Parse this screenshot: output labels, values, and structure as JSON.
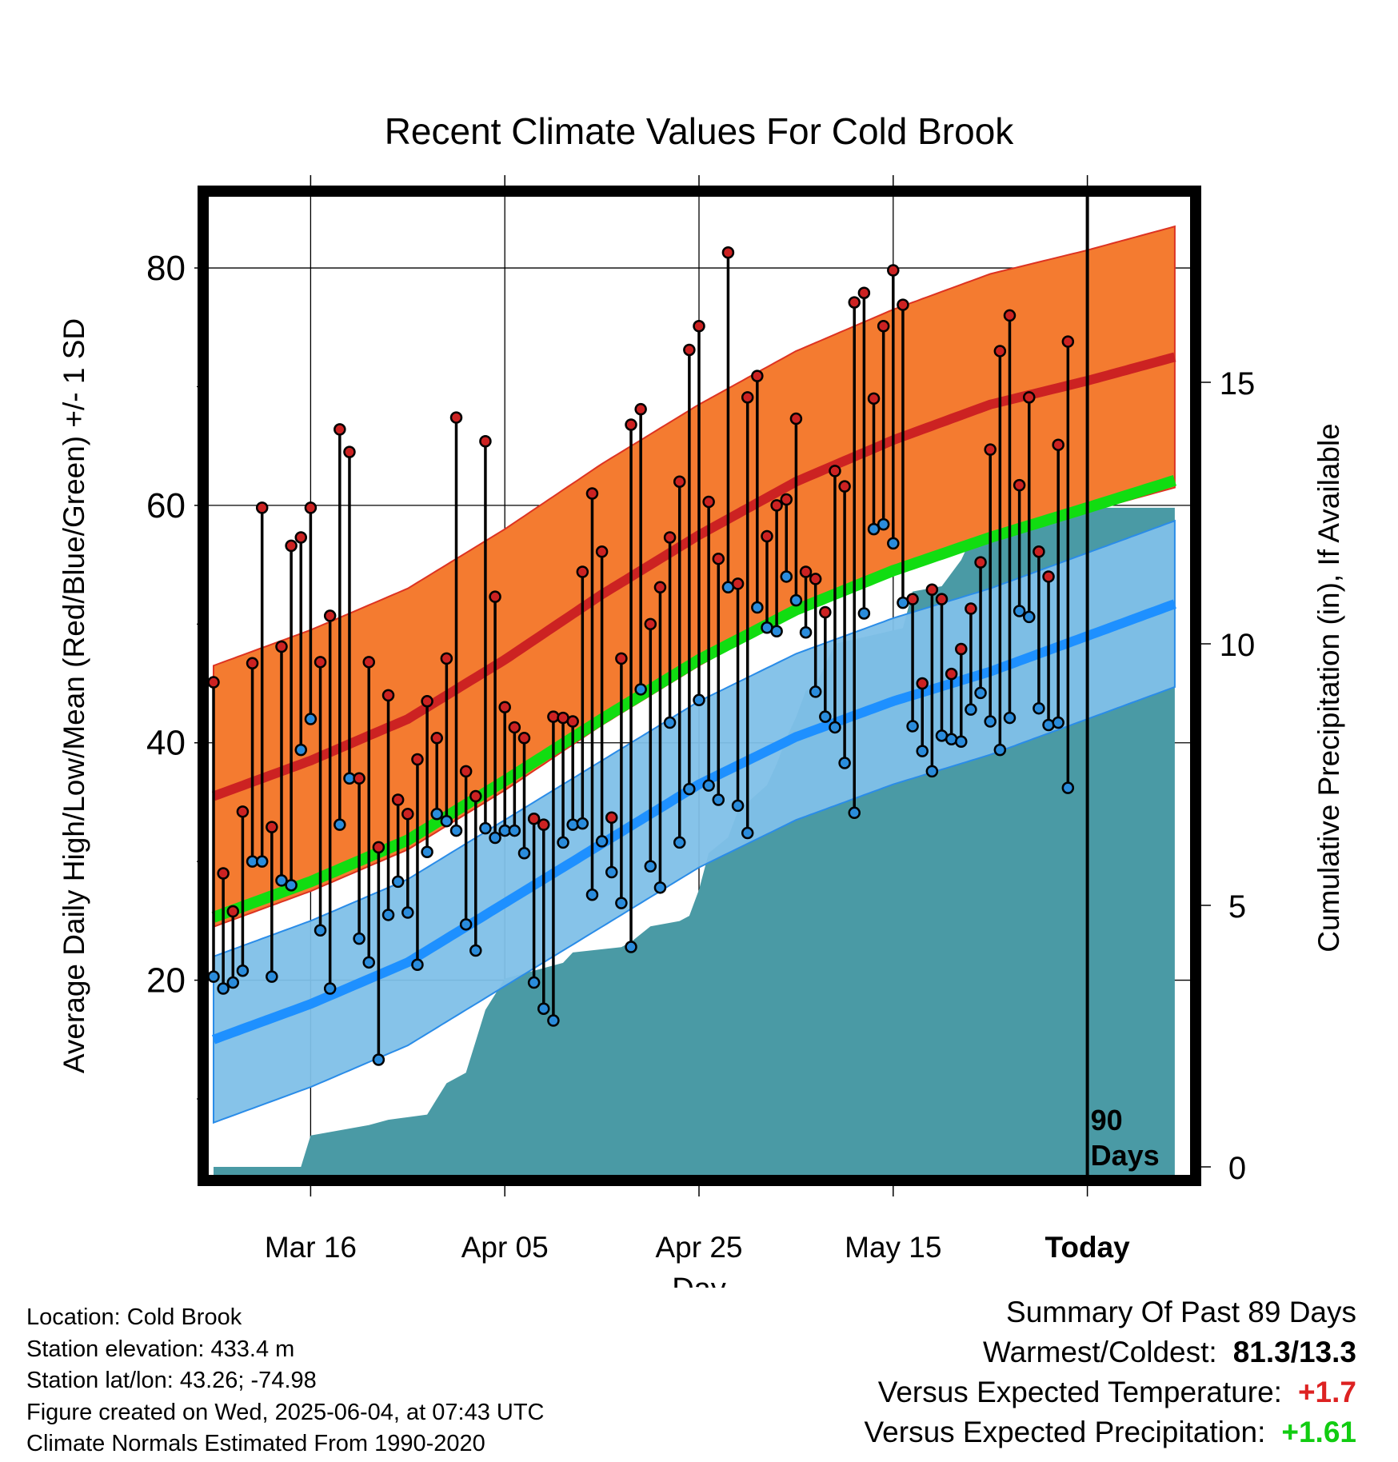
{
  "chart_data": {
    "type": "line",
    "title": "Recent Climate Values For Cold Brook",
    "xlabel": "Day",
    "ylabel": "Average Daily High/Low/Mean (Red/Blue/Green) +/- 1 SD",
    "y2label": "Cumulative Precipitation (in), If Available",
    "x_ticks": [
      {
        "day": 10,
        "label": "Mar 16"
      },
      {
        "day": 30,
        "label": "Apr 05"
      },
      {
        "day": 50,
        "label": "Apr 25"
      },
      {
        "day": 70,
        "label": "May 15"
      },
      {
        "day": 90,
        "label": "Today"
      }
    ],
    "xlim": [
      0,
      99
    ],
    "ylim": [
      3.6,
      86
    ],
    "y_ticks": [
      20,
      40,
      60,
      80
    ],
    "y2lim": [
      0,
      18.7
    ],
    "y2_ticks": [
      0,
      5,
      10,
      15
    ],
    "today_marker": "90\nDays",
    "normal_high": {
      "days": [
        0,
        10,
        20,
        30,
        40,
        50,
        60,
        70,
        80,
        90,
        99
      ],
      "mean": [
        35.5,
        38.5,
        42,
        47,
        52.5,
        57.5,
        62,
        65.5,
        68.5,
        70.5,
        72.5
      ],
      "sd": 11
    },
    "normal_low": {
      "days": [
        0,
        10,
        20,
        30,
        40,
        50,
        60,
        70,
        80,
        90,
        99
      ],
      "mean": [
        15,
        18,
        21.5,
        26.5,
        31.5,
        36.5,
        40.5,
        43.5,
        46,
        49,
        51.7
      ],
      "sd": 7
    },
    "normal_mean": {
      "days": [
        0,
        10,
        20,
        30,
        40,
        50,
        60,
        70,
        80,
        90,
        99
      ],
      "values": [
        25.3,
        28.3,
        31.8,
        36.8,
        42,
        47,
        51.2,
        54.5,
        57.3,
        59.8,
        62.1
      ]
    },
    "daily": [
      [
        0,
        45.1,
        20.3
      ],
      [
        1,
        29,
        19.3
      ],
      [
        2,
        25.8,
        19.8
      ],
      [
        3,
        34.2,
        20.8
      ],
      [
        4,
        46.7,
        30
      ],
      [
        5,
        59.8,
        30
      ],
      [
        6,
        32.9,
        20.3
      ],
      [
        7,
        48.1,
        28.4
      ],
      [
        8,
        56.6,
        28
      ],
      [
        9,
        57.3,
        39.4
      ],
      [
        10,
        59.8,
        42
      ],
      [
        11,
        46.8,
        24.2
      ],
      [
        12,
        50.7,
        19.3
      ],
      [
        13,
        66.4,
        33.1
      ],
      [
        14,
        64.5,
        37
      ],
      [
        15,
        37,
        23.5
      ],
      [
        16,
        46.8,
        21.5
      ],
      [
        17,
        31.2,
        13.3
      ],
      [
        18,
        44,
        25.5
      ],
      [
        19,
        35.2,
        28.3
      ],
      [
        20,
        34,
        25.7
      ],
      [
        21,
        38.6,
        21.3
      ],
      [
        22,
        43.5,
        30.8
      ],
      [
        23,
        40.4,
        34
      ],
      [
        24,
        47.1,
        33.4
      ],
      [
        25,
        67.4,
        32.6
      ],
      [
        26,
        37.6,
        24.7
      ],
      [
        27,
        35.5,
        22.5
      ],
      [
        28,
        65.4,
        32.8
      ],
      [
        29,
        52.3,
        32
      ],
      [
        30,
        43,
        32.6
      ],
      [
        31,
        41.3,
        32.6
      ],
      [
        32,
        40.4,
        30.7
      ],
      [
        33,
        33.6,
        19.8
      ],
      [
        34,
        33.1,
        17.6
      ],
      [
        35,
        42.2,
        16.6
      ],
      [
        36,
        42.1,
        31.6
      ],
      [
        37,
        41.8,
        33.1
      ],
      [
        38,
        54.4,
        33.2
      ],
      [
        39,
        61,
        27.2
      ],
      [
        40,
        56.1,
        31.7
      ],
      [
        41,
        33.7,
        29.1
      ],
      [
        42,
        47.1,
        26.5
      ],
      [
        43,
        66.8,
        22.8
      ],
      [
        44,
        68.1,
        44.5
      ],
      [
        45,
        50,
        29.6
      ],
      [
        46,
        53.1,
        27.8
      ],
      [
        47,
        57.3,
        41.7
      ],
      [
        48,
        62,
        31.6
      ],
      [
        49,
        73.1,
        36.1
      ],
      [
        50,
        75.1,
        43.6
      ],
      [
        51,
        60.3,
        36.4
      ],
      [
        52,
        55.5,
        35.2
      ],
      [
        53,
        81.3,
        53.1
      ],
      [
        54,
        53.4,
        34.7
      ],
      [
        55,
        69.1,
        32.4
      ],
      [
        56,
        70.9,
        51.4
      ],
      [
        57,
        57.4,
        49.7
      ],
      [
        58,
        60,
        49.4
      ],
      [
        59,
        60.5,
        54
      ],
      [
        60,
        67.3,
        52
      ],
      [
        61,
        54.4,
        49.3
      ],
      [
        62,
        53.8,
        44.3
      ],
      [
        63,
        51,
        42.2
      ],
      [
        64,
        62.9,
        41.3
      ],
      [
        65,
        61.6,
        38.3
      ],
      [
        66,
        77.1,
        34.1
      ],
      [
        67,
        77.9,
        50.9
      ],
      [
        68,
        69,
        58
      ],
      [
        69,
        75.1,
        58.4
      ],
      [
        70,
        79.8,
        56.8
      ],
      [
        71,
        76.9,
        51.8
      ],
      [
        72,
        52.1,
        41.4
      ],
      [
        73,
        45,
        39.3
      ],
      [
        74,
        52.9,
        37.6
      ],
      [
        75,
        52.1,
        40.6
      ],
      [
        76,
        45.8,
        40.3
      ],
      [
        77,
        47.9,
        40.1
      ],
      [
        78,
        51.3,
        42.8
      ],
      [
        79,
        55.2,
        44.2
      ],
      [
        80,
        64.7,
        41.8
      ],
      [
        81,
        73,
        39.4
      ],
      [
        82,
        76,
        42.1
      ],
      [
        83,
        61.7,
        51.1
      ],
      [
        84,
        69.1,
        50.6
      ],
      [
        85,
        56.1,
        42.9
      ],
      [
        86,
        54,
        41.5
      ],
      [
        87,
        65.1,
        41.7
      ],
      [
        88,
        73.8,
        36.2
      ]
    ],
    "precip_cumulative": [
      [
        0,
        0
      ],
      [
        9,
        0
      ],
      [
        10,
        0.6
      ],
      [
        13,
        0.7
      ],
      [
        16,
        0.8
      ],
      [
        18,
        0.9
      ],
      [
        22,
        1
      ],
      [
        23,
        1.3
      ],
      [
        24,
        1.6
      ],
      [
        26,
        1.8
      ],
      [
        27,
        2.4
      ],
      [
        28,
        3
      ],
      [
        29,
        3.3
      ],
      [
        30,
        3.6
      ],
      [
        32,
        3.7
      ],
      [
        36,
        3.9
      ],
      [
        37,
        4.1
      ],
      [
        42,
        4.2
      ],
      [
        43,
        4.3
      ],
      [
        45,
        4.6
      ],
      [
        48,
        4.7
      ],
      [
        49,
        4.8
      ],
      [
        50,
        5.3
      ],
      [
        51,
        6
      ],
      [
        53,
        6.3
      ],
      [
        54,
        6.8
      ],
      [
        57,
        7.3
      ],
      [
        58,
        7.7
      ],
      [
        59,
        8.2
      ],
      [
        60,
        8.6
      ],
      [
        61,
        9.1
      ],
      [
        62,
        9.2
      ],
      [
        64,
        10
      ],
      [
        71,
        10.3
      ],
      [
        72,
        11
      ],
      [
        75,
        11.1
      ],
      [
        77,
        11.6
      ],
      [
        78,
        12
      ],
      [
        79,
        12.2
      ],
      [
        83,
        12.3
      ],
      [
        84,
        12.5
      ],
      [
        85,
        12.6
      ],
      [
        99,
        12.6
      ]
    ],
    "grid": true,
    "colors": {
      "high_band": "#f47b30",
      "high_line": "#cc2222",
      "high_edge": "#dd3322",
      "low_band": "#80c0e8",
      "low_line": "#1e90ff",
      "low_edge": "#2a8ce8",
      "mean_line": "#11dd11",
      "precip": "#4a9aa5",
      "high_point": "#cc2222",
      "low_point": "#2a8cdc"
    }
  },
  "info": {
    "location": "Location: Cold Brook",
    "elevation": "Station elevation: 433.4 m",
    "latlon": "Station lat/lon: 43.26; -74.98",
    "created": "Figure created on Wed, 2025-06-04, at 07:43 UTC",
    "normals": "Climate Normals Estimated From 1990-2020"
  },
  "summary": {
    "title": "Summary Of Past 89 Days",
    "warmest_label": "Warmest/Coldest:",
    "warmest_value": "81.3/13.3",
    "temp_label": "Versus Expected Temperature:",
    "temp_value": "+1.7",
    "temp_color": "#dd2222",
    "precip_label": "Versus Expected Precipitation:",
    "precip_value": "+1.61",
    "precip_color": "#11cc11"
  }
}
